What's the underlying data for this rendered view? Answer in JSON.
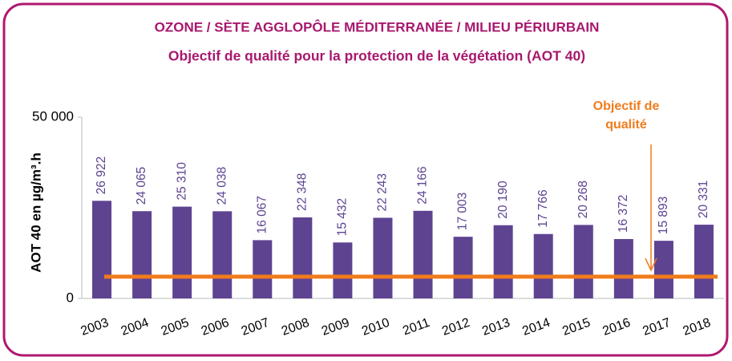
{
  "chart_data": {
    "type": "bar",
    "title": "OZONE / SÈTE AGGLOPÔLE MÉDITERRANÉE / MILIEU PÉRIURBAIN",
    "subtitle": "Objectif de qualité pour la protection de la végétation (AOT 40)",
    "y_label": "AOT 40 en µg/m³.h",
    "categories": [
      "2003",
      "2004",
      "2005",
      "2006",
      "2007",
      "2008",
      "2009",
      "2010",
      "2011",
      "2012",
      "2013",
      "2014",
      "2015",
      "2016",
      "2017",
      "2018"
    ],
    "values": [
      26922,
      24065,
      25310,
      24038,
      16067,
      22348,
      15432,
      22243,
      24166,
      17003,
      20190,
      17766,
      20268,
      16372,
      15893,
      20331
    ],
    "value_labels": [
      "26 922",
      "24 065",
      "25 310",
      "24 038",
      "16 067",
      "22 348",
      "15 432",
      "22 243",
      "24 166",
      "17 003",
      "20 190",
      "17 766",
      "20 268",
      "16 372",
      "15 893",
      "20 331"
    ],
    "color": "#5e4391",
    "ylim": [
      0,
      50000
    ],
    "yticks": [
      0,
      {
        "value": 50000,
        "label": "50 000"
      }
    ],
    "reference_line": {
      "value": 6000,
      "color": "#f07c1c"
    },
    "annotation": [
      "Objectif de",
      "qualité"
    ]
  }
}
